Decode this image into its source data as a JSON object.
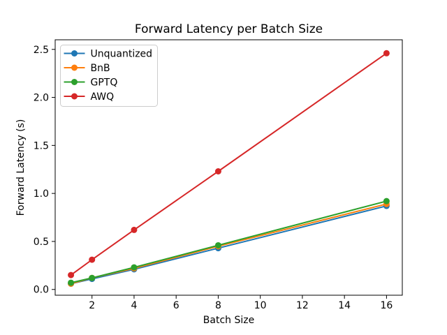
{
  "chart_data": {
    "type": "line",
    "title": "Forward Latency per Batch Size",
    "xlabel": "Batch Size",
    "ylabel": "Forward Latency (s)",
    "x": [
      1,
      2,
      4,
      8,
      16
    ],
    "series": [
      {
        "name": "Unquantized",
        "color": "#1f77b4",
        "values": [
          0.06,
          0.11,
          0.21,
          0.43,
          0.87
        ]
      },
      {
        "name": "BnB",
        "color": "#ff7f0e",
        "values": [
          0.06,
          0.12,
          0.22,
          0.45,
          0.89
        ]
      },
      {
        "name": "GPTQ",
        "color": "#2ca02c",
        "values": [
          0.07,
          0.12,
          0.23,
          0.46,
          0.92
        ]
      },
      {
        "name": "AWQ",
        "color": "#d62728",
        "values": [
          0.15,
          0.31,
          0.62,
          1.23,
          2.46
        ]
      }
    ],
    "x_tick_labels": [
      "2",
      "4",
      "6",
      "8",
      "10",
      "12",
      "14",
      "16"
    ],
    "y_tick_labels": [
      "0.0",
      "0.5",
      "1.0",
      "1.5",
      "2.0",
      "2.5"
    ],
    "xlim": [
      0.25,
      16.75
    ],
    "ylim": [
      -0.06,
      2.6
    ],
    "grid": false,
    "legend_position": "upper left",
    "marker": "o",
    "background": "#ffffff",
    "axis_color": "#000000",
    "legend_border_color": "#cccccc"
  }
}
